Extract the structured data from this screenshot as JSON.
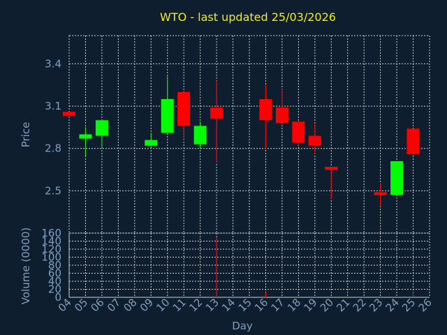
{
  "chart_data": {
    "type": "candlestick",
    "title": "WTO - last updated 25/03/2026",
    "xlabel": "Day",
    "price_ylabel": "Price",
    "volume_ylabel": "Volume (0000)",
    "x_ticks": [
      "04",
      "05",
      "06",
      "07",
      "08",
      "09",
      "10",
      "11",
      "12",
      "13",
      "14",
      "15",
      "16",
      "17",
      "18",
      "19",
      "20",
      "21",
      "22",
      "23",
      "24",
      "25",
      "26"
    ],
    "price_ylim": [
      2.2,
      3.6
    ],
    "price_ticks": [
      "2.5",
      "2.8",
      "3.1",
      "3.4"
    ],
    "volume_ylim": [
      0,
      160
    ],
    "volume_ticks": [
      "0",
      "20",
      "40",
      "60",
      "80",
      "100",
      "120",
      "140",
      "160"
    ],
    "grid": true,
    "candles": [
      {
        "day": "04",
        "open": 3.06,
        "high": 3.06,
        "low": 3.03,
        "close": 3.03
      },
      {
        "day": "05",
        "open": 2.87,
        "high": 2.95,
        "low": 2.75,
        "close": 2.9
      },
      {
        "day": "06",
        "open": 2.89,
        "high": 3.0,
        "low": 2.8,
        "close": 3.0
      },
      {
        "day": "09",
        "open": 2.82,
        "high": 2.91,
        "low": 2.81,
        "close": 2.86
      },
      {
        "day": "10",
        "open": 2.91,
        "high": 3.31,
        "low": 2.91,
        "close": 3.15
      },
      {
        "day": "11",
        "open": 3.2,
        "high": 3.2,
        "low": 2.86,
        "close": 2.96
      },
      {
        "day": "12",
        "open": 2.83,
        "high": 2.99,
        "low": 2.8,
        "close": 2.96
      },
      {
        "day": "13",
        "open": 3.09,
        "high": 3.28,
        "low": 2.7,
        "close": 3.01
      },
      {
        "day": "16",
        "open": 3.15,
        "high": 3.25,
        "low": 2.8,
        "close": 3.0
      },
      {
        "day": "17",
        "open": 3.09,
        "high": 3.22,
        "low": 2.98,
        "close": 2.98
      },
      {
        "day": "18",
        "open": 2.99,
        "high": 2.99,
        "low": 2.81,
        "close": 2.84
      },
      {
        "day": "19",
        "open": 2.89,
        "high": 2.98,
        "low": 2.76,
        "close": 2.82
      },
      {
        "day": "20",
        "open": 2.67,
        "high": 2.67,
        "low": 2.44,
        "close": 2.65
      },
      {
        "day": "23",
        "open": 2.49,
        "high": 2.55,
        "low": 2.39,
        "close": 2.47
      },
      {
        "day": "24",
        "open": 2.47,
        "high": 2.71,
        "low": 2.47,
        "close": 2.71
      },
      {
        "day": "25",
        "open": 2.94,
        "high": 2.94,
        "low": 2.75,
        "close": 2.76
      }
    ],
    "volumes": [
      {
        "day": "13",
        "value": 150
      },
      {
        "day": "16",
        "value": 12
      },
      {
        "day": "25",
        "value": 12
      }
    ],
    "colors": {
      "background": "#0f1e2e",
      "title": "#f0f000",
      "axis_text": "#7f9fbf",
      "grid": "#d0d0d0",
      "up": "#00ff00",
      "down": "#ff0000"
    }
  }
}
